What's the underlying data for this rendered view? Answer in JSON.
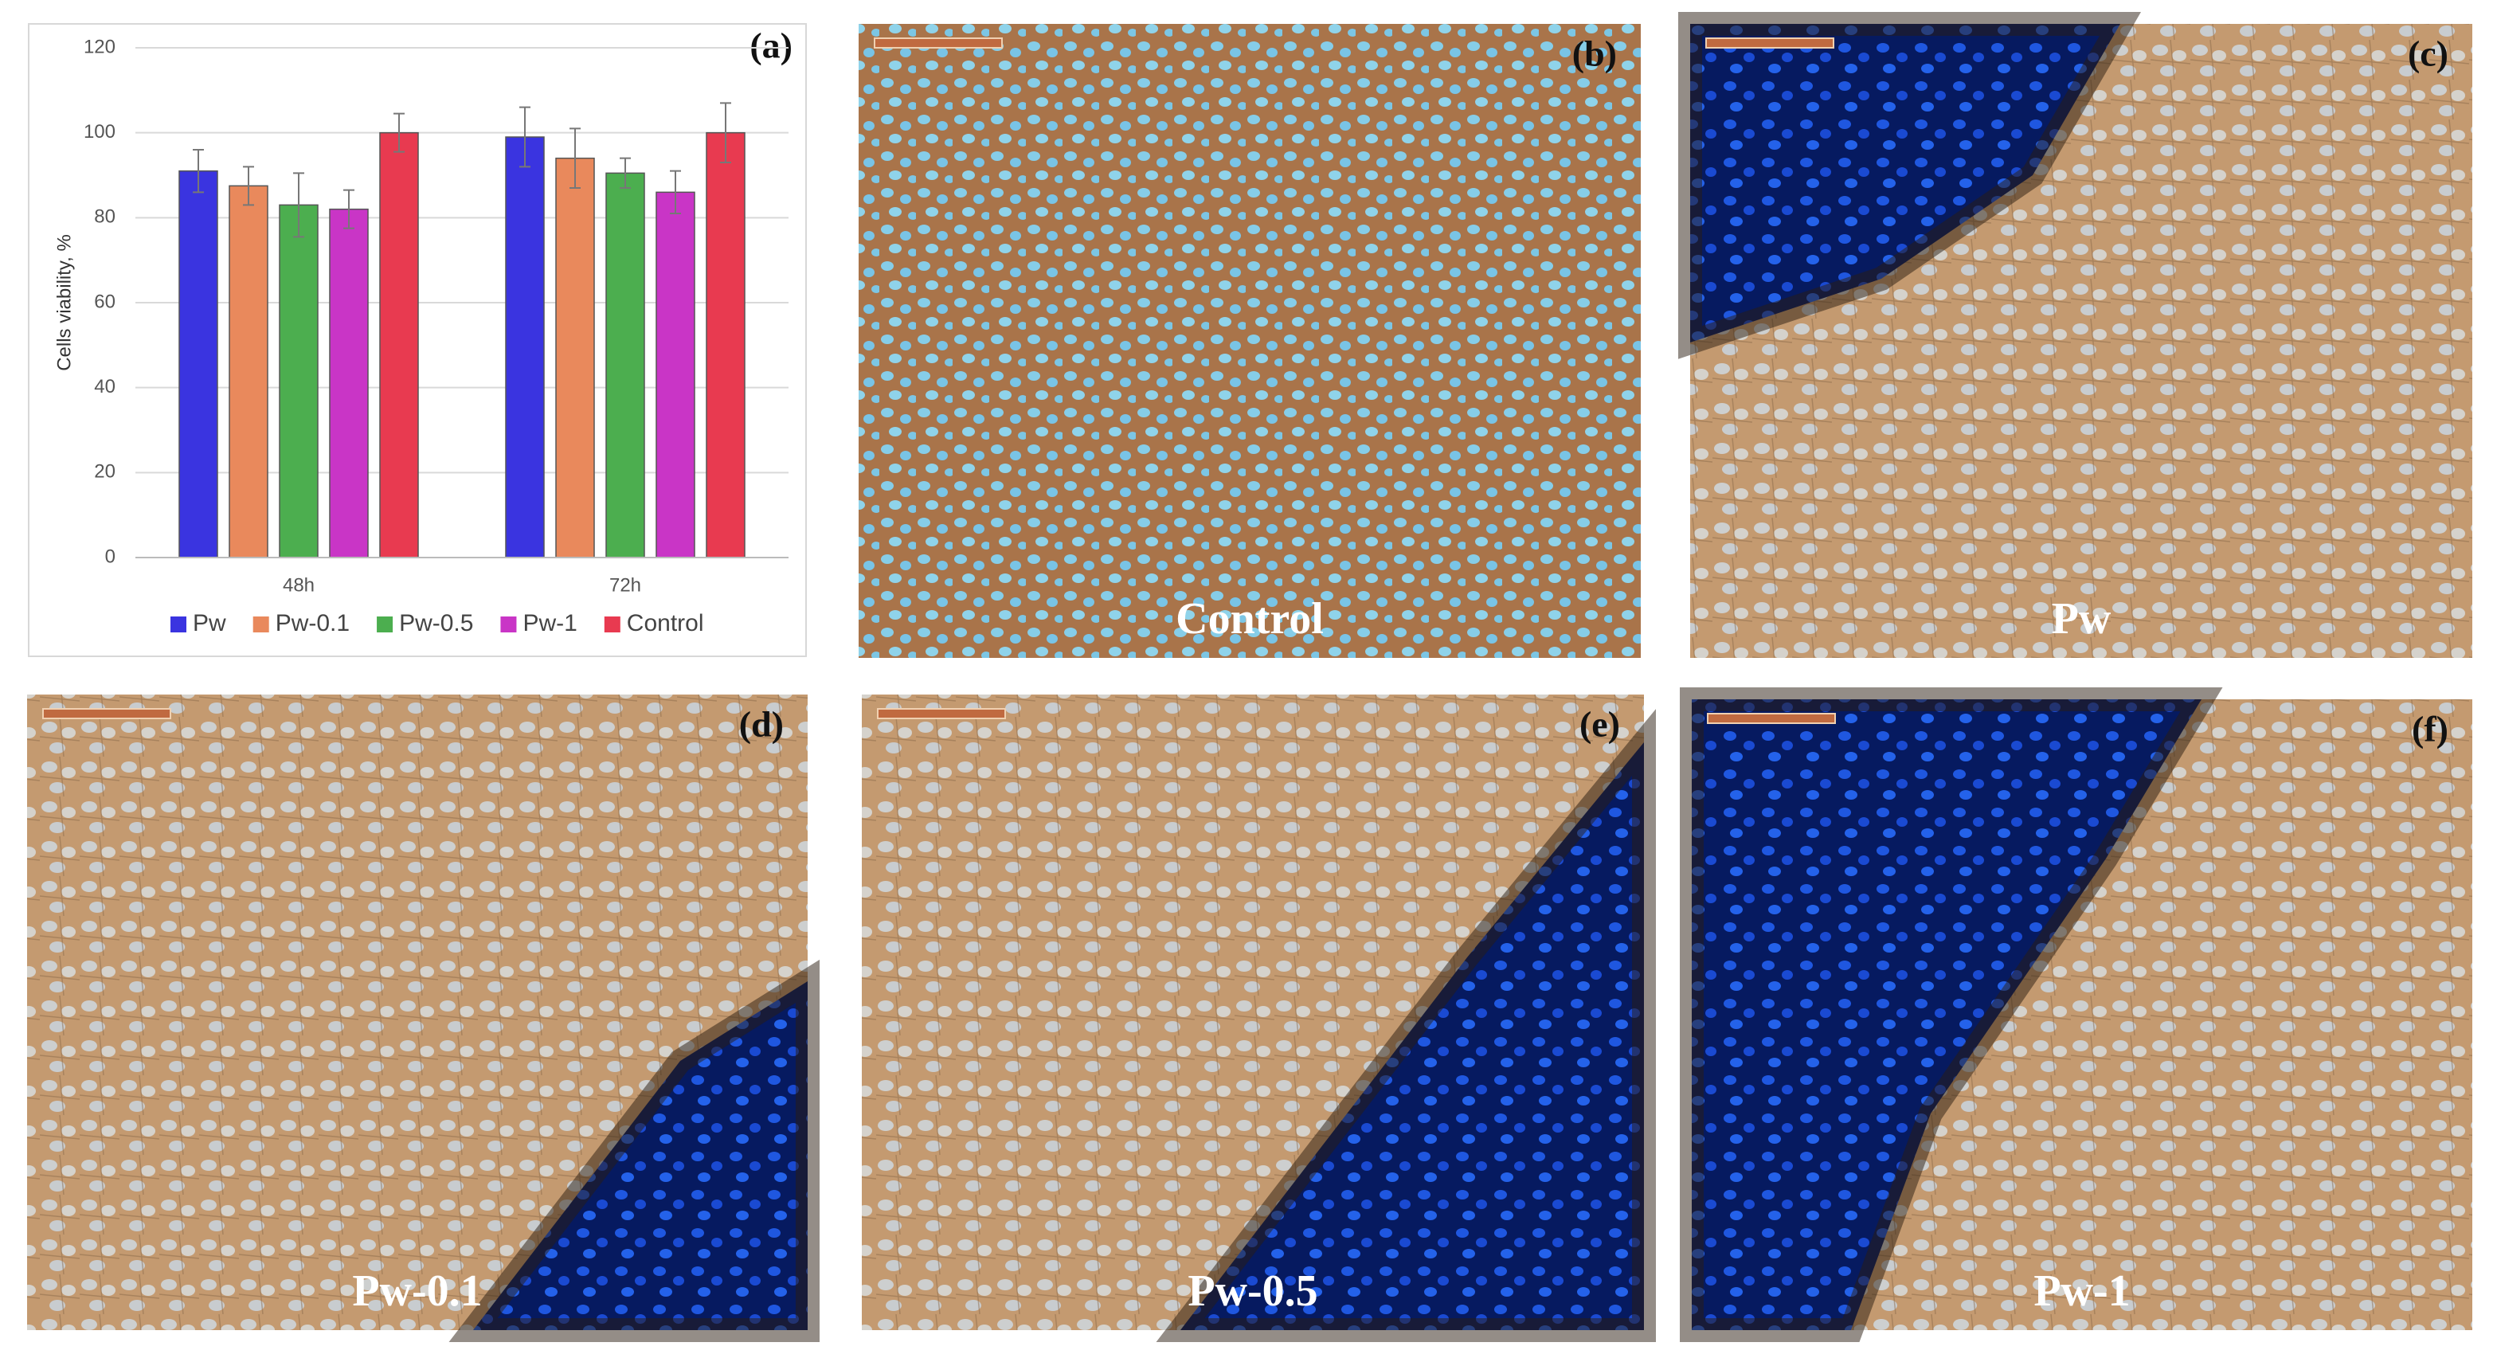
{
  "chart_data": {
    "type": "bar",
    "panel_label": "(a)",
    "ylabel": "Cells viability, %",
    "categories": [
      "48h",
      "72h"
    ],
    "series": [
      {
        "name": "Pw",
        "color": "#3a34e0",
        "values": [
          91,
          99
        ],
        "errors": [
          5,
          7
        ]
      },
      {
        "name": "Pw-0.1",
        "color": "#e9895c",
        "values": [
          87.5,
          94
        ],
        "errors": [
          4.5,
          7
        ]
      },
      {
        "name": "Pw-0.5",
        "color": "#4cae4f",
        "values": [
          83,
          90.5
        ],
        "errors": [
          7.5,
          3.5
        ]
      },
      {
        "name": "Pw-1",
        "color": "#c935c6",
        "values": [
          82,
          86
        ],
        "errors": [
          4.5,
          5
        ]
      },
      {
        "name": "Control",
        "color": "#e83a50",
        "values": [
          100,
          100
        ],
        "errors": [
          4.5,
          7
        ]
      }
    ],
    "ylim": [
      0,
      120
    ],
    "yticks": [
      0,
      20,
      40,
      60,
      80,
      100,
      120
    ],
    "grid": true,
    "legend": "bottom"
  },
  "panels": [
    {
      "label": "(b)",
      "caption": "Control"
    },
    {
      "label": "(c)",
      "caption": "Pw"
    },
    {
      "label": "(d)",
      "caption": "Pw-0.1"
    },
    {
      "label": "(e)",
      "caption": "Pw-0.5"
    },
    {
      "label": "(f)",
      "caption": "Pw-1"
    }
  ]
}
